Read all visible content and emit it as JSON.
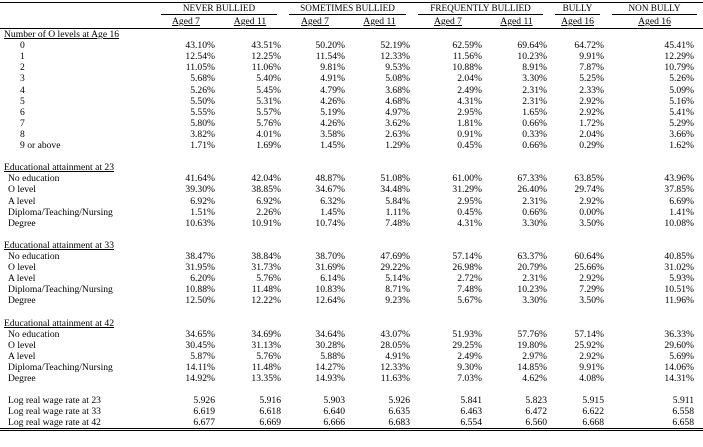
{
  "header": {
    "groups": [
      "NEVER BULLIED",
      "SOMETIMES BULLIED",
      "FREQUENTLY BULLIED",
      "BULLY",
      "NON BULLY"
    ],
    "subheaders": [
      "Aged 7",
      "Aged 11",
      "Aged 7",
      "Aged 11",
      "Aged 7",
      "Aged 11",
      "Aged 16",
      "Aged 16"
    ]
  },
  "sections": [
    {
      "title": "Number of O levels at Age 16",
      "rows": [
        {
          "label": "0",
          "values": [
            "43.10%",
            "43.51%",
            "50.20%",
            "52.19%",
            "62.59%",
            "69.64%",
            "64.72%",
            "45.41%"
          ]
        },
        {
          "label": "1",
          "values": [
            "12.54%",
            "12.25%",
            "11.54%",
            "12.33%",
            "11.56%",
            "10.23%",
            "9.91%",
            "12.29%"
          ]
        },
        {
          "label": "2",
          "values": [
            "11.05%",
            "11.06%",
            "9.81%",
            "9.53%",
            "10.88%",
            "8.91%",
            "7.87%",
            "10.79%"
          ]
        },
        {
          "label": "3",
          "values": [
            "5.68%",
            "5.40%",
            "4.91%",
            "5.08%",
            "2.04%",
            "3.30%",
            "5.25%",
            "5.26%"
          ]
        },
        {
          "label": "4",
          "values": [
            "5.26%",
            "5.45%",
            "4.79%",
            "3.68%",
            "2.49%",
            "2.31%",
            "2.33%",
            "5.09%"
          ]
        },
        {
          "label": "5",
          "values": [
            "5.50%",
            "5.31%",
            "4.26%",
            "4.68%",
            "4.31%",
            "2.31%",
            "2.92%",
            "5.16%"
          ]
        },
        {
          "label": "6",
          "values": [
            "5.55%",
            "5.57%",
            "5.19%",
            "4.97%",
            "2.95%",
            "1.65%",
            "2.92%",
            "5.41%"
          ]
        },
        {
          "label": "7",
          "values": [
            "5.80%",
            "5.76%",
            "4.26%",
            "3.62%",
            "1.81%",
            "0.66%",
            "1.72%",
            "5.29%"
          ]
        },
        {
          "label": "8",
          "values": [
            "3.82%",
            "4.01%",
            "3.58%",
            "2.63%",
            "0.91%",
            "0.33%",
            "2.04%",
            "3.66%"
          ]
        },
        {
          "label": "9 or above",
          "values": [
            "1.71%",
            "1.69%",
            "1.45%",
            "1.29%",
            "0.45%",
            "0.66%",
            "0.29%",
            "1.62%"
          ]
        }
      ]
    },
    {
      "title": "Educational attainment at 23",
      "rows": [
        {
          "label": "No education",
          "values": [
            "41.64%",
            "42.04%",
            "48.87%",
            "51.08%",
            "61.00%",
            "67.33%",
            "63.85%",
            "43.96%"
          ]
        },
        {
          "label": "O level",
          "values": [
            "39.30%",
            "38.85%",
            "34.67%",
            "34.48%",
            "31.29%",
            "26.40%",
            "29.74%",
            "37.85%"
          ]
        },
        {
          "label": "A level",
          "values": [
            "6.92%",
            "6.92%",
            "6.32%",
            "5.84%",
            "2.95%",
            "2.31%",
            "2.92%",
            "6.69%"
          ]
        },
        {
          "label": "Diploma/Teaching/Nursing",
          "values": [
            "1.51%",
            "2.26%",
            "1.45%",
            "1.11%",
            "0.45%",
            "0.66%",
            "0.00%",
            "1.41%"
          ]
        },
        {
          "label": "Degree",
          "values": [
            "10.63%",
            "10.91%",
            "10.74%",
            "7.48%",
            "4.31%",
            "3.30%",
            "3.50%",
            "10.08%"
          ]
        }
      ]
    },
    {
      "title": "Educational attainment at 33",
      "rows": [
        {
          "label": "No education",
          "values": [
            "38.47%",
            "38.84%",
            "38.70%",
            "47.69%",
            "57.14%",
            "63.37%",
            "60.64%",
            "40.85%"
          ]
        },
        {
          "label": "O level",
          "values": [
            "31.95%",
            "31.73%",
            "31.69%",
            "29.22%",
            "26.98%",
            "20.79%",
            "25.66%",
            "31.02%"
          ]
        },
        {
          "label": "A level",
          "values": [
            "6.20%",
            "5.76%",
            "6.14%",
            "5.14%",
            "2.72%",
            "2.31%",
            "2.92%",
            "5.93%"
          ]
        },
        {
          "label": "Diploma/Teaching/Nursing",
          "values": [
            "10.88%",
            "11.48%",
            "10.83%",
            "8.71%",
            "7.48%",
            "10.23%",
            "7.29%",
            "10.51%"
          ]
        },
        {
          "label": "Degree",
          "values": [
            "12.50%",
            "12.22%",
            "12.64%",
            "9.23%",
            "5.67%",
            "3.30%",
            "3.50%",
            "11.96%"
          ]
        }
      ]
    },
    {
      "title": "Educational attainment at 42",
      "rows": [
        {
          "label": "No education",
          "values": [
            "34.65%",
            "34.69%",
            "34.64%",
            "43.07%",
            "51.93%",
            "57.76%",
            "57.14%",
            "36.33%"
          ]
        },
        {
          "label": "O level",
          "values": [
            "30.45%",
            "31.13%",
            "30.28%",
            "28.05%",
            "29.25%",
            "19.80%",
            "25.92%",
            "29.60%"
          ]
        },
        {
          "label": "A level",
          "values": [
            "5.87%",
            "5.76%",
            "5.88%",
            "4.91%",
            "2.49%",
            "2.97%",
            "2.92%",
            "5.69%"
          ]
        },
        {
          "label": "Diploma/Teaching/Nursing",
          "values": [
            "14.11%",
            "11.48%",
            "14.27%",
            "12.33%",
            "9.30%",
            "14.85%",
            "9.91%",
            "14.06%"
          ]
        },
        {
          "label": "Degree",
          "values": [
            "14.92%",
            "13.35%",
            "14.93%",
            "11.63%",
            "7.03%",
            "4.62%",
            "4.08%",
            "14.31%"
          ]
        }
      ]
    }
  ],
  "wage_rows": [
    {
      "label": "Log real wage rate at 23",
      "values": [
        "5.926",
        "5.916",
        "5.903",
        "5.926",
        "5.841",
        "5.823",
        "5.915",
        "5.911"
      ]
    },
    {
      "label": "Log real wage rate at 33",
      "values": [
        "6.619",
        "6.618",
        "6.640",
        "6.635",
        "6.463",
        "6.472",
        "6.622",
        "6.558"
      ]
    },
    {
      "label": "Log real wage rate at 42",
      "values": [
        "6.677",
        "6.669",
        "6.666",
        "6.683",
        "6.554",
        "6.560",
        "6.668",
        "6.658"
      ]
    }
  ]
}
